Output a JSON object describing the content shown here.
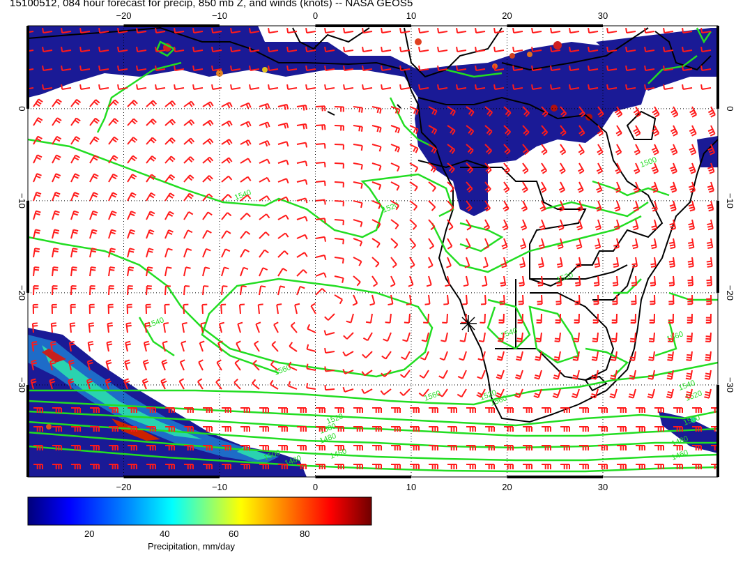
{
  "title": "15100512, 084 hour forecast for precip, 850 mb Z, and winds (knots) -- NASA GEOS5",
  "map": {
    "lon_range": [
      -30,
      42
    ],
    "lat_range": [
      -40,
      9
    ],
    "lon_ticks": [
      "-20",
      "-10",
      "0",
      "10",
      "20",
      "30"
    ],
    "lat_ticks": [
      "0",
      "-10",
      "-20",
      "-30"
    ],
    "gridlines": "dotted",
    "fill_colors": {
      "land_border": "#000000",
      "contour": "#22dd22",
      "wind": "#ff1a1a",
      "precip_low": "#1a1a9a"
    }
  },
  "contour_labels": [
    "1540",
    "1520",
    "1540",
    "1560",
    "1520",
    "1500",
    "1480",
    "1460",
    "1560",
    "1540",
    "1520",
    "1500",
    "1480",
    "1460",
    "1500",
    "1520",
    "1520",
    "1540",
    "1560",
    "1500",
    "1480",
    "1560"
  ],
  "colorbar": {
    "title": "Precipitation, mm/day",
    "ticks": [
      "20",
      "40",
      "60",
      "80"
    ],
    "colors": [
      "#00008f",
      "#0000ff",
      "#0080ff",
      "#00ffff",
      "#80ff80",
      "#ffff00",
      "#ff8000",
      "#ff0000",
      "#800000"
    ]
  }
}
